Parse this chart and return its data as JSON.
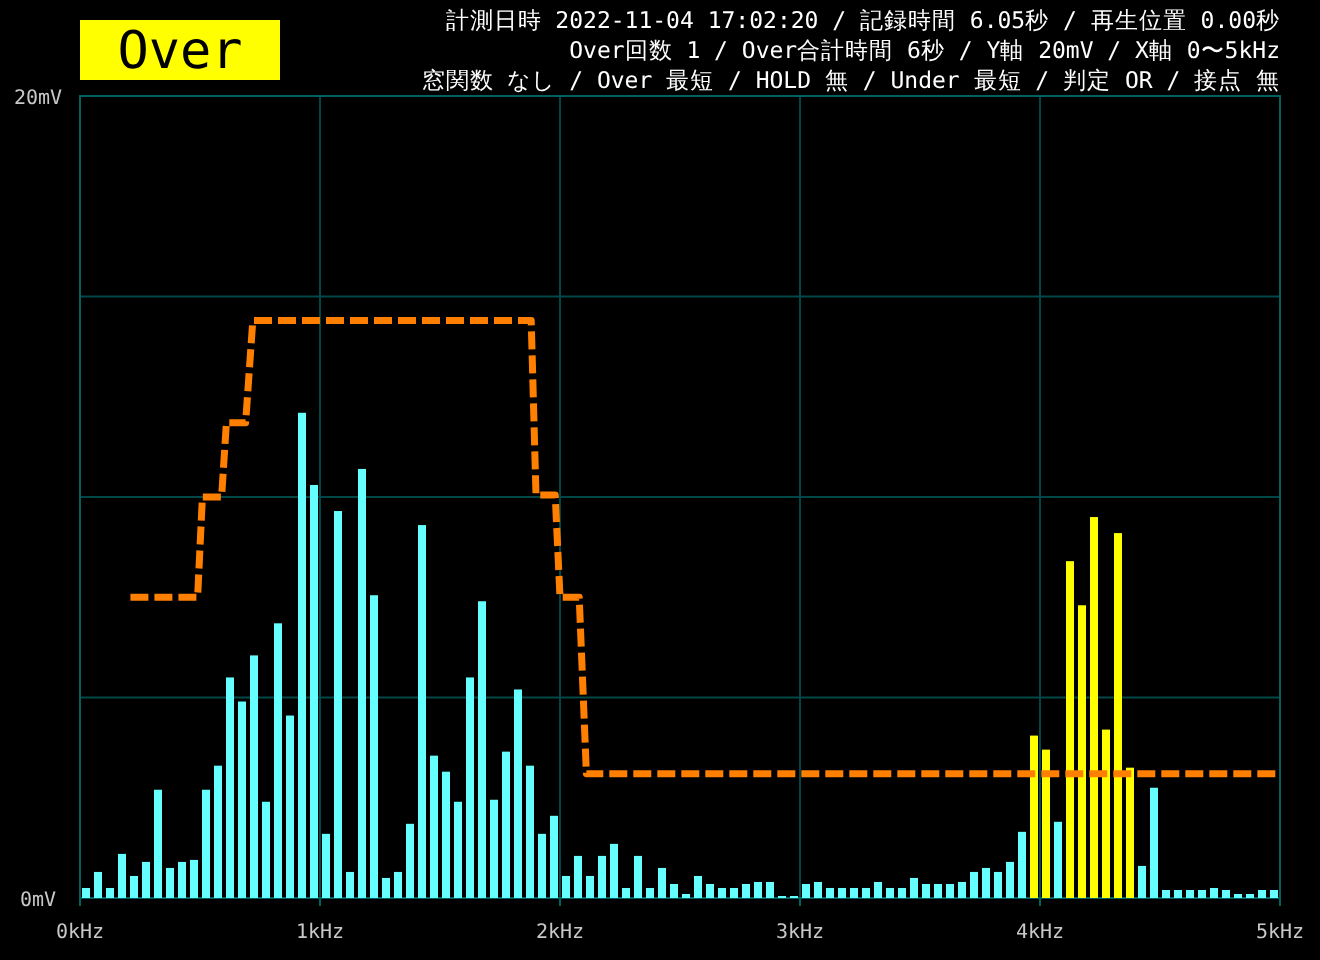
{
  "chart_data": {
    "type": "bar",
    "title": "Over",
    "annotations": [
      "計測日時 2022-11-04 17:02:20 / 記録時間 6.05秒 / 再生位置 0.00秒",
      "Over回数 1 / Over合計時間 6秒 / Y軸 20mV / X軸 0〜5kHz",
      "窓関数 なし / Over 最短 / HOLD 無 / Under 最短 / 判定 OR / 接点 無"
    ],
    "xlim": [
      0,
      5
    ],
    "ylim": [
      0,
      20
    ],
    "xticks": [
      {
        "value": 0,
        "label": "0kHz"
      },
      {
        "value": 1,
        "label": "1kHz"
      },
      {
        "value": 2,
        "label": "2kHz"
      },
      {
        "value": 3,
        "label": "3kHz"
      },
      {
        "value": 4,
        "label": "4kHz"
      },
      {
        "value": 5,
        "label": "5kHz"
      }
    ],
    "yticks": [
      {
        "value": 0,
        "label": "0mV"
      },
      {
        "value": 5,
        "label": null
      },
      {
        "value": 10,
        "label": null
      },
      {
        "value": 15,
        "label": null
      },
      {
        "value": 20,
        "label": "20mV"
      }
    ],
    "grid": true,
    "series": [
      {
        "x": [
          0.025,
          0.075,
          0.125,
          0.175,
          0.225,
          0.275,
          0.325,
          0.375,
          0.425,
          0.475,
          0.525,
          0.575,
          0.625,
          0.675,
          0.725,
          0.775,
          0.825,
          0.875,
          0.925,
          0.975,
          1.025,
          1.075,
          1.125,
          1.175,
          1.225,
          1.275,
          1.325,
          1.375,
          1.425,
          1.475,
          1.525,
          1.575,
          1.625,
          1.675,
          1.725,
          1.775,
          1.825,
          1.875,
          1.925,
          1.975,
          2.025,
          2.075,
          2.125,
          2.175,
          2.225,
          2.275,
          2.325,
          2.375,
          2.425,
          2.475,
          2.525,
          2.575,
          2.625,
          2.675,
          2.725,
          2.775,
          2.825,
          2.875,
          2.925,
          2.975,
          3.025,
          3.075,
          3.125,
          3.175,
          3.225,
          3.275,
          3.325,
          3.375,
          3.425,
          3.475,
          3.525,
          3.575,
          3.625,
          3.675,
          3.725,
          3.775,
          3.825,
          3.875,
          3.925,
          3.975,
          4.025,
          4.075,
          4.125,
          4.175,
          4.225,
          4.275,
          4.325,
          4.375,
          4.425,
          4.475,
          4.525,
          4.575,
          4.625,
          4.675,
          4.725,
          4.775,
          4.825,
          4.875,
          4.925,
          4.975
        ],
        "values": [
          0.25,
          0.65,
          0.25,
          1.1,
          0.55,
          0.9,
          2.7,
          0.75,
          0.9,
          0.95,
          2.7,
          3.3,
          5.5,
          4.9,
          6.05,
          2.4,
          6.85,
          4.55,
          12.1,
          10.3,
          1.6,
          9.65,
          0.65,
          10.7,
          7.55,
          0.5,
          0.65,
          1.85,
          9.3,
          3.55,
          3.15,
          2.4,
          5.5,
          7.4,
          2.45,
          3.65,
          5.2,
          3.3,
          1.6,
          2.05,
          0.55,
          1.05,
          0.55,
          1.05,
          1.35,
          0.25,
          1.05,
          0.25,
          0.75,
          0.35,
          0.1,
          0.55,
          0.35,
          0.25,
          0.25,
          0.35,
          0.4,
          0.4,
          0.05,
          0.05,
          0.35,
          0.4,
          0.25,
          0.25,
          0.25,
          0.25,
          0.4,
          0.25,
          0.25,
          0.5,
          0.35,
          0.35,
          0.35,
          0.4,
          0.65,
          0.75,
          0.65,
          0.9,
          1.65,
          4.05,
          3.7,
          1.9,
          8.4,
          7.3,
          9.5,
          4.2,
          9.1,
          3.25,
          0.8,
          2.75,
          0.2,
          0.2,
          0.2,
          0.2,
          0.25,
          0.2,
          0.1,
          0.1,
          0.2,
          0.2
        ],
        "colors": [
          "#66ffff",
          "#66ffff",
          "#66ffff",
          "#66ffff",
          "#66ffff",
          "#66ffff",
          "#66ffff",
          "#66ffff",
          "#66ffff",
          "#66ffff",
          "#66ffff",
          "#66ffff",
          "#66ffff",
          "#66ffff",
          "#66ffff",
          "#66ffff",
          "#66ffff",
          "#66ffff",
          "#66ffff",
          "#66ffff",
          "#66ffff",
          "#66ffff",
          "#66ffff",
          "#66ffff",
          "#66ffff",
          "#66ffff",
          "#66ffff",
          "#66ffff",
          "#66ffff",
          "#66ffff",
          "#66ffff",
          "#66ffff",
          "#66ffff",
          "#66ffff",
          "#66ffff",
          "#66ffff",
          "#66ffff",
          "#66ffff",
          "#66ffff",
          "#66ffff",
          "#66ffff",
          "#66ffff",
          "#66ffff",
          "#66ffff",
          "#66ffff",
          "#66ffff",
          "#66ffff",
          "#66ffff",
          "#66ffff",
          "#66ffff",
          "#66ffff",
          "#66ffff",
          "#66ffff",
          "#66ffff",
          "#66ffff",
          "#66ffff",
          "#66ffff",
          "#66ffff",
          "#66ffff",
          "#66ffff",
          "#66ffff",
          "#66ffff",
          "#66ffff",
          "#66ffff",
          "#66ffff",
          "#66ffff",
          "#66ffff",
          "#66ffff",
          "#66ffff",
          "#66ffff",
          "#66ffff",
          "#66ffff",
          "#66ffff",
          "#66ffff",
          "#66ffff",
          "#66ffff",
          "#66ffff",
          "#66ffff",
          "#66ffff",
          "#ffff00",
          "#ffff00",
          "#66ffff",
          "#ffff00",
          "#ffff00",
          "#ffff00",
          "#ffff00",
          "#ffff00",
          "#ffff00",
          "#66ffff",
          "#66ffff",
          "#66ffff",
          "#66ffff",
          "#66ffff",
          "#66ffff",
          "#66ffff",
          "#66ffff",
          "#66ffff",
          "#66ffff",
          "#66ffff",
          "#66ffff"
        ]
      },
      {
        "type": "line",
        "color": "#ff8000",
        "line_style": "dashed",
        "x": [
          0.21,
          0.49,
          0.51,
          0.59,
          0.61,
          0.69,
          0.72,
          1.88,
          1.9,
          1.98,
          2.0,
          2.08,
          2.11,
          4.99
        ],
        "values": [
          7.5,
          7.5,
          10.0,
          10.0,
          11.85,
          11.85,
          14.4,
          14.4,
          10.05,
          10.05,
          7.5,
          7.5,
          3.1,
          3.1
        ]
      }
    ]
  }
}
